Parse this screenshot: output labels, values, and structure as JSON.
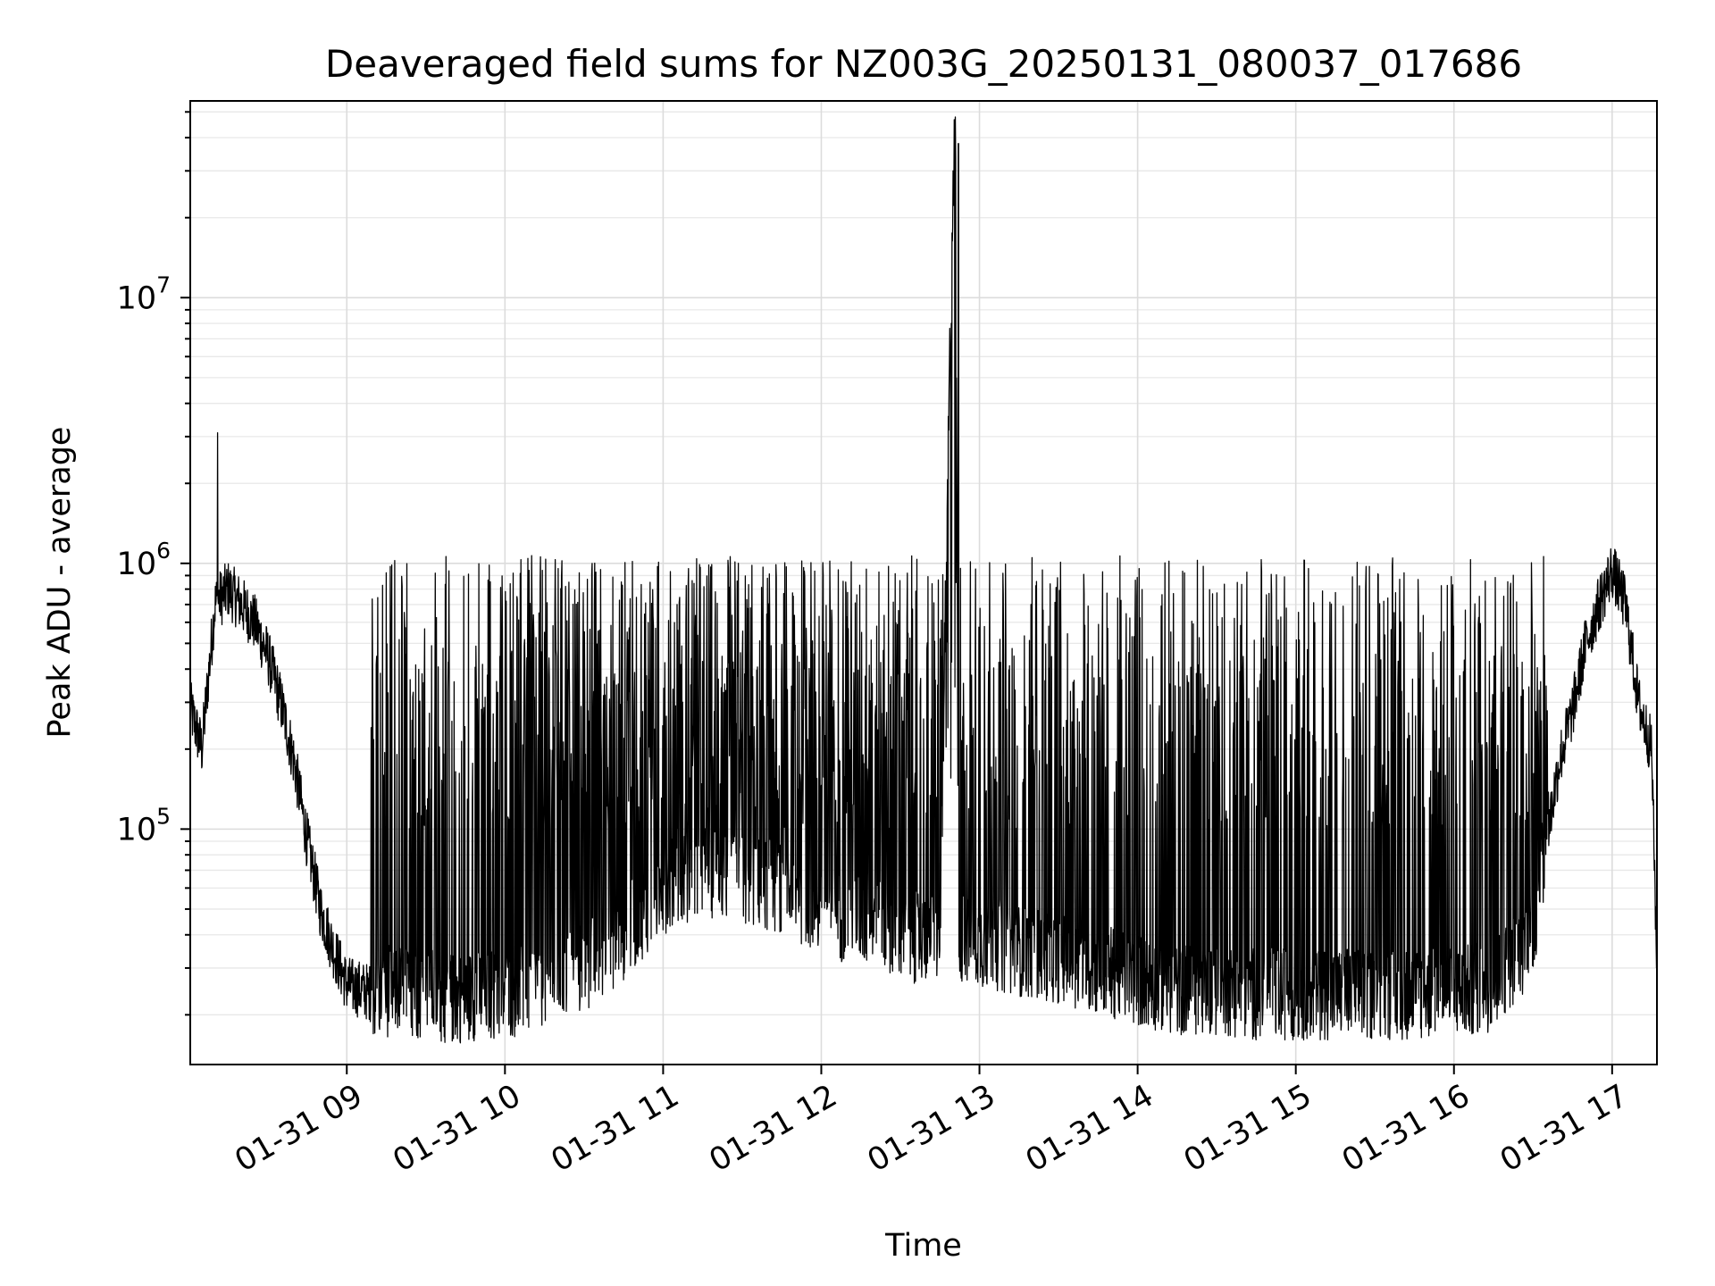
{
  "chart_data": {
    "type": "line",
    "title": "Deaveraged field sums for NZ003G_20250131_080037_017686",
    "xlabel": "Time",
    "ylabel": "Peak ADU - average",
    "yscale": "log",
    "grid": "on (major and minor)",
    "line_color": "#000000",
    "xlim": [
      "01-31 08:00:37",
      "01-31 17:17:00"
    ],
    "ylim": [
      13000,
      55000000
    ],
    "x_ticks": [
      "01-31 09",
      "01-31 10",
      "01-31 11",
      "01-31 12",
      "01-31 13",
      "01-31 14",
      "01-31 15",
      "01-31 16",
      "01-31 17"
    ],
    "y_ticks": [
      {
        "value": 100000,
        "base": "10",
        "exp": "5"
      },
      {
        "value": 1000000,
        "base": "10",
        "exp": "6"
      },
      {
        "value": 10000000,
        "base": "10",
        "exp": "7"
      }
    ],
    "series": [
      {
        "x": [
          "01-31 08:00",
          "01-31 08:05",
          "01-31 08:10",
          "01-31 08:15",
          "01-31 08:20",
          "01-31 08:25",
          "01-31 08:30",
          "01-31 08:35",
          "01-31 08:40",
          "01-31 08:45",
          "01-31 08:50",
          "01-31 08:55",
          "01-31 09:00",
          "01-31 09:10",
          "01-31 09:20",
          "01-31 09:30",
          "01-31 09:40",
          "01-31 09:50",
          "01-31 10:00",
          "01-31 10:15",
          "01-31 10:30",
          "01-31 10:45",
          "01-31 11:00",
          "01-31 11:15",
          "01-31 11:30",
          "01-31 11:45",
          "01-31 12:00",
          "01-31 12:15",
          "01-31 12:30",
          "01-31 12:45",
          "01-31 12:50",
          "01-31 12:51",
          "01-31 12:52",
          "01-31 13:00",
          "01-31 13:15",
          "01-31 13:30",
          "01-31 13:45",
          "01-31 14:00",
          "01-31 14:15",
          "01-31 14:30",
          "01-31 14:45",
          "01-31 15:00",
          "01-31 15:15",
          "01-31 15:30",
          "01-31 15:45",
          "01-31 16:00",
          "01-31 16:15",
          "01-31 16:30",
          "01-31 16:35",
          "01-31 16:40",
          "01-31 16:45",
          "01-31 16:50",
          "01-31 16:55",
          "01-31 17:00",
          "01-31 17:05",
          "01-31 17:10",
          "01-31 17:15",
          "01-31 17:17"
        ],
        "y": [
          300000,
          200000,
          700000,
          800000,
          700000,
          600000,
          450000,
          300000,
          180000,
          90000,
          50000,
          35000,
          26000,
          24000,
          25000,
          24000,
          23000,
          24000,
          24000,
          26000,
          30000,
          40000,
          60000,
          70000,
          65000,
          60000,
          50000,
          45000,
          40000,
          38000,
          30000000,
          38000000,
          40000,
          38000,
          35000,
          33000,
          30000,
          27000,
          25000,
          25000,
          24000,
          24000,
          24000,
          24000,
          24000,
          24000,
          26000,
          40000,
          90000,
          180000,
          280000,
          500000,
          700000,
          950000,
          700000,
          300000,
          200000,
          30000
        ]
      }
    ]
  }
}
